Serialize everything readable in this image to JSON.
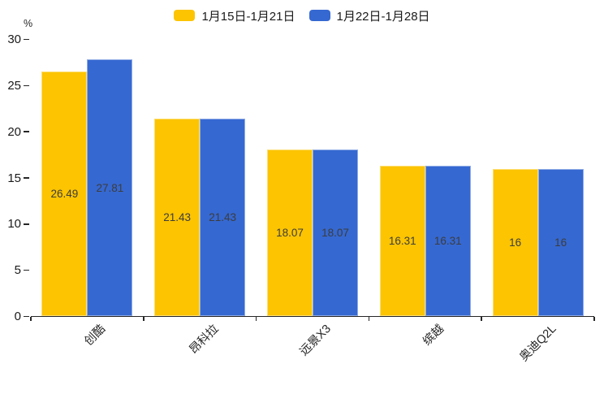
{
  "chart_data": {
    "type": "bar",
    "title": "",
    "unit_label": "%",
    "categories": [
      "创酷",
      "昂科拉",
      "远景X3",
      "缤越",
      "奥迪Q2L"
    ],
    "series": [
      {
        "name": "1月15日-1月21日",
        "color": "#FCC401",
        "values": [
          26.49,
          21.43,
          18.07,
          16.31,
          16
        ]
      },
      {
        "name": "1月22日-1月28日",
        "color": "#3568D1",
        "values": [
          27.81,
          21.43,
          18.07,
          16.31,
          16
        ]
      }
    ],
    "value_labels": [
      "26.49",
      "27.81",
      "21.43",
      "21.43",
      "18.07",
      "18.07",
      "16.31",
      "16.31",
      "16",
      "16"
    ],
    "y_ticks": [
      0,
      5,
      10,
      15,
      20,
      25,
      30
    ],
    "ylim": [
      0,
      30
    ],
    "grid": false,
    "legend_position": "top",
    "x_label_rotation_deg": -45,
    "axis_color": "#262626",
    "value_label_color": "#3d3d3d"
  }
}
